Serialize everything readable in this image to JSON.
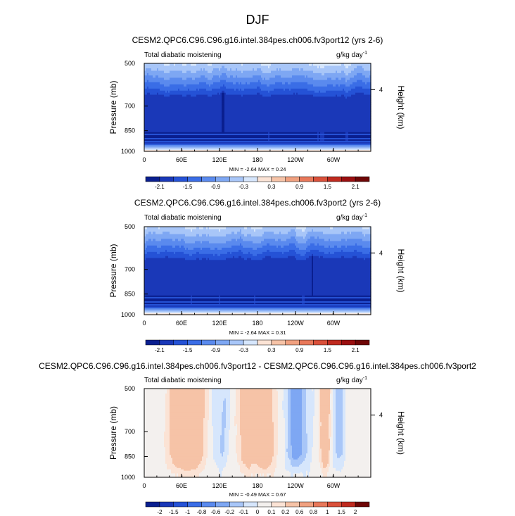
{
  "page_title": "DJF",
  "chart_data": [
    {
      "type": "heatmap",
      "title": "CESM2.QPC6.C96.C96.g16.intel.384pes.ch006.fv3port12 (yrs 2-6)",
      "left_label": "Total diabatic moistening",
      "units": "g/kg day",
      "units_exp": "-1",
      "ylabel": "Pressure (mb)",
      "ylabel_right": "Height (km)",
      "xticks": [
        "0",
        "60E",
        "120E",
        "180",
        "120W",
        "60W"
      ],
      "yticks": [
        "500",
        "700",
        "850",
        "1000"
      ],
      "right_ticks": [
        "4"
      ],
      "stats": "MIN =  -2.64   MAX =  0.24",
      "min": -2.64,
      "max": 0.24,
      "colorbar_labels": [
        "-2.1",
        "-1.5",
        "-0.9",
        "-0.3",
        "0.3",
        "0.9",
        "1.5",
        "2.1"
      ]
    },
    {
      "type": "heatmap",
      "title": "CESM2.QPC6.C96.C96.g16.intel.384pes.ch006.fv3port2 (yrs 2-6)",
      "left_label": "Total diabatic moistening",
      "units": "g/kg day",
      "units_exp": "-1",
      "ylabel": "Pressure (mb)",
      "ylabel_right": "Height (km)",
      "xticks": [
        "0",
        "60E",
        "120E",
        "180",
        "120W",
        "60W"
      ],
      "yticks": [
        "500",
        "700",
        "850",
        "1000"
      ],
      "right_ticks": [
        "4"
      ],
      "stats": "MIN =  -2.64   MAX =  0.31",
      "min": -2.64,
      "max": 0.31,
      "colorbar_labels": [
        "-2.1",
        "-1.5",
        "-0.9",
        "-0.3",
        "0.3",
        "0.9",
        "1.5",
        "2.1"
      ]
    },
    {
      "type": "heatmap",
      "title": "CESM2.QPC6.C96.C96.g16.intel.384pes.ch006.fv3port12 - CESM2.QPC6.C96.C96.g16.intel.384pes.ch006.fv3port2",
      "left_label": "Total diabatic moistening",
      "units": "g/kg day",
      "units_exp": "-1",
      "ylabel": "Pressure (mb)",
      "ylabel_right": "Height (km)",
      "xticks": [
        "0",
        "60E",
        "120E",
        "180",
        "120W",
        "60W"
      ],
      "yticks": [
        "500",
        "700",
        "850",
        "1000"
      ],
      "right_ticks": [
        "4"
      ],
      "stats": "MIN =  -0.49   MAX =  0.67",
      "min": -0.49,
      "max": 0.67,
      "colorbar_labels": [
        "-2",
        "-1.5",
        "-1",
        "-0.8",
        "-0.6",
        "-0.2",
        "-0.1",
        "0",
        "0.1",
        "0.2",
        "0.6",
        "0.8",
        "1",
        "1.5",
        "2"
      ]
    }
  ],
  "colors": {
    "cb_full": [
      "#0a1f8f",
      "#1a38b8",
      "#2552d6",
      "#3a6de6",
      "#5a8aee",
      "#7ea7f3",
      "#a8c6f8",
      "#d6e6fc",
      "#fbe3d5",
      "#f6c3a7",
      "#f0a07f",
      "#e8785a",
      "#d9503a",
      "#bf2a1f",
      "#9a0f10",
      "#6e0606"
    ],
    "cb_diff": [
      "#0a1f8f",
      "#1a38b8",
      "#2552d6",
      "#3a6de6",
      "#5a8aee",
      "#7ea7f3",
      "#a8c6f8",
      "#d6e6fc",
      "#f3f0ee",
      "#fbe3d5",
      "#f6c3a7",
      "#f0a07f",
      "#e8785a",
      "#d9503a",
      "#bf2a1f",
      "#6e0606"
    ]
  }
}
